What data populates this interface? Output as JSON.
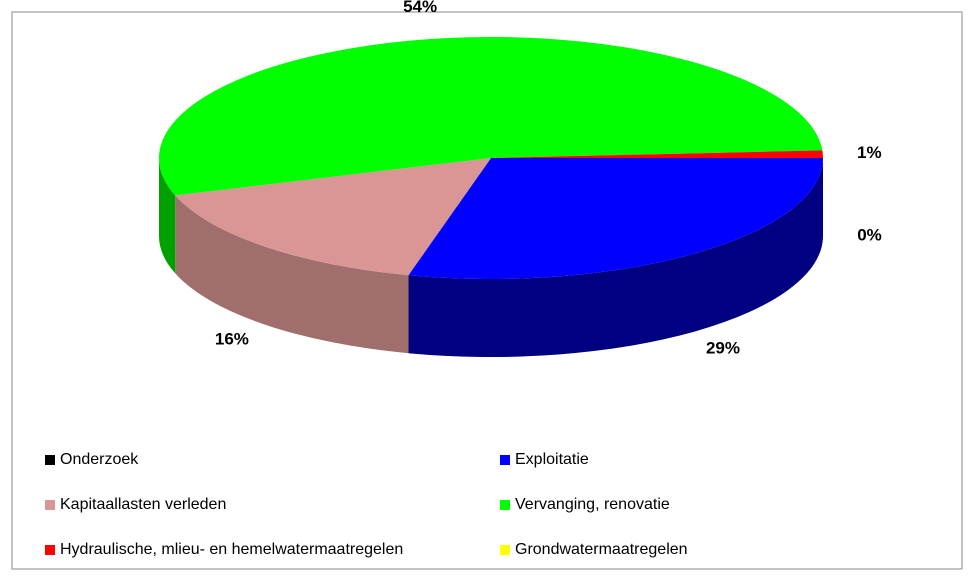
{
  "chart_data": {
    "type": "pie3d",
    "categories": [
      "Onderzoek",
      "Exploitatie",
      "Kapitaallasten verleden",
      "Vervanging, renovatie",
      "Hydraulische, mlieu- en hemelwatermaatregelen",
      "Grondwatermaatregelen"
    ],
    "values": [
      0,
      29,
      16,
      54,
      1,
      0
    ],
    "value_labels": [
      "0%",
      "29%",
      "16%",
      "54%",
      "1%",
      null
    ],
    "colors": [
      "#000000",
      "#0000ff",
      "#d99694",
      "#00ff00",
      "#ff0000",
      "#ffff00"
    ],
    "side_colors": [
      "#000000",
      "#000080",
      "#a06e6c",
      "#00a000",
      "#a00000",
      "#a0a000"
    ],
    "legend": "bottom"
  }
}
